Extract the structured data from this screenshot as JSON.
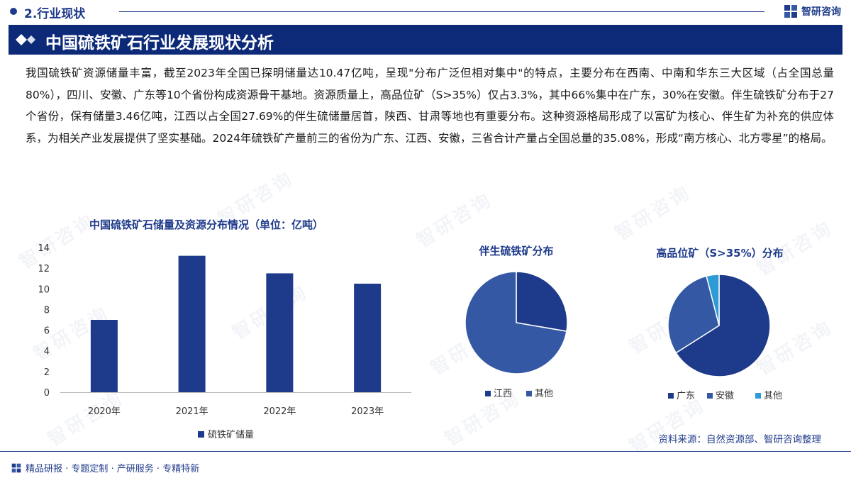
{
  "section": {
    "title": "2.行业现状"
  },
  "brand": {
    "name": "智研咨询"
  },
  "banner": {
    "title": "中国硫铁矿石行业发展现状分析"
  },
  "paragraph": "我国硫铁矿资源储量丰富，截至2023年全国已探明储量达10.47亿吨，呈现\"分布广泛但相对集中\"的特点，主要分布在西南、中南和华东三大区域（占全国总量80%），四川、安徽、广东等10个省份构成资源骨干基地。资源质量上，高品位矿（S>35%）仅占3.3%，其中66%集中在广东，30%在安徽。伴生硫铁矿分布于27个省份，保有储量3.46亿吨，江西以占全国27.69%的伴生硫储量居首，陕西、甘肃等地也有重要分布。这种资源格局形成了以富矿为核心、伴生矿为补充的供应体系，为相关产业发展提供了坚实基础。2024年硫铁矿产量前三的省份为广东、江西、安徽，三省合计产量占全国总量的35.08%，形成“南方核心、北方零星”的格局。",
  "watermark": "智研咨询",
  "colors": {
    "navy": "#1e3a8a",
    "banner": "#0d2a78",
    "mid_blue": "#3558a5",
    "light_blue": "#2e9bd6"
  },
  "chart_data": [
    {
      "type": "bar",
      "title": "中国硫铁矿石储量及资源分布情况（单位：亿吨）",
      "categories": [
        "2020年",
        "2021年",
        "2022年",
        "2023年"
      ],
      "series": [
        {
          "name": "硫铁矿储量",
          "values": [
            7.0,
            13.2,
            11.5,
            10.5
          ],
          "color": "#1e3a8a"
        }
      ],
      "ylim": [
        0,
        14
      ],
      "yticks": [
        "0",
        "2",
        "4",
        "6",
        "8",
        "10",
        "12",
        "14"
      ],
      "grid": false,
      "legend": "bottom"
    },
    {
      "type": "pie",
      "title": "伴生硫铁矿分布",
      "labels": [
        "江西",
        "其他"
      ],
      "values": [
        27.69,
        72.31
      ],
      "colors": [
        "#1e3a8a",
        "#3558a5"
      ],
      "legend": "bottom"
    },
    {
      "type": "pie",
      "title": "高品位矿（S>35%）分布",
      "labels": [
        "广东",
        "安徽",
        "其他"
      ],
      "values": [
        66,
        30,
        4
      ],
      "colors": [
        "#1e3a8a",
        "#3558a5",
        "#2e9bd6"
      ],
      "legend": "bottom"
    }
  ],
  "source": "资料来源：自然资源部、智研咨询整理",
  "footer": {
    "tagline": "精品研报 · 专题定制 · 产研服务 · 专精特新"
  }
}
